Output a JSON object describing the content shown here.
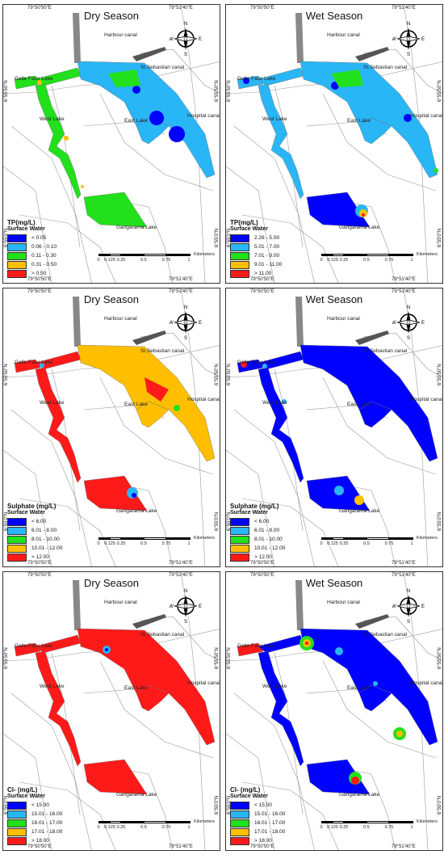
{
  "panels": [
    {
      "season": "Dry Season",
      "param": "TP(mg/L)",
      "subtitle": "Surface Water",
      "classes": [
        {
          "label": "< 0.05",
          "color": "#0000ff"
        },
        {
          "label": "0.06 - 0.10",
          "color": "#29b6f6"
        },
        {
          "label": "0.11 - 0.30",
          "color": "#22e01b"
        },
        {
          "label": "0.31 - 0.50",
          "color": "#ffbf00"
        },
        {
          "label": "> 0.50",
          "color": "#ff1a1a"
        }
      ]
    },
    {
      "season": "Wet Season",
      "param": "TP(mg/L)",
      "subtitle": "Surface Water",
      "classes": [
        {
          "label": "2.26 - 5.00",
          "color": "#0000ff"
        },
        {
          "label": "5.01 - 7.00",
          "color": "#29b6f6"
        },
        {
          "label": "7.01 - 9.00",
          "color": "#22e01b"
        },
        {
          "label": "9.01 - 11.00",
          "color": "#ffbf00"
        },
        {
          "label": "> 11.00",
          "color": "#ff1a1a"
        }
      ]
    },
    {
      "season": "Dry Season",
      "param": "Sulphate (mg/L)",
      "subtitle": "Surface Water",
      "classes": [
        {
          "label": "< 6.00",
          "color": "#0000ff"
        },
        {
          "label": "6.01 - 8.00",
          "color": "#29b6f6"
        },
        {
          "label": "8.01 - 10.00",
          "color": "#22e01b"
        },
        {
          "label": "10.01 - 12.00",
          "color": "#ffbf00"
        },
        {
          "label": "> 12.00",
          "color": "#ff1a1a"
        }
      ]
    },
    {
      "season": "Wet Season",
      "param": "Sulphate (mg/L)",
      "subtitle": "Surface Water",
      "classes": [
        {
          "label": "< 6.00",
          "color": "#0000ff"
        },
        {
          "label": "6.01 - 8.00",
          "color": "#29b6f6"
        },
        {
          "label": "8.01 - 10.00",
          "color": "#22e01b"
        },
        {
          "label": "10.01 - 12.00",
          "color": "#ffbf00"
        },
        {
          "label": "> 12.00",
          "color": "#ff1a1a"
        }
      ]
    },
    {
      "season": "Dry Season",
      "param": "Cl- (mg/L)",
      "subtitle": "Surface Water",
      "classes": [
        {
          "label": "< 15.00",
          "color": "#0000ff"
        },
        {
          "label": "15.01 - 16.00",
          "color": "#29b6f6"
        },
        {
          "label": "16.01 - 17.00",
          "color": "#22e01b"
        },
        {
          "label": "17.01 - 18.00",
          "color": "#ffbf00"
        },
        {
          "label": "> 18.00",
          "color": "#ff1a1a"
        }
      ]
    },
    {
      "season": "Wet Season",
      "param": "Cl- (mg/L)",
      "subtitle": "Surface Water",
      "classes": [
        {
          "label": "< 15.00",
          "color": "#0000ff"
        },
        {
          "label": "15.01 - 16.00",
          "color": "#29b6f6"
        },
        {
          "label": "16.01 - 17.00",
          "color": "#22e01b"
        },
        {
          "label": "17.01 - 18.00",
          "color": "#ffbf00"
        },
        {
          "label": "> 18.00",
          "color": "#ff1a1a"
        }
      ]
    }
  ],
  "places": {
    "harbour": "Harbour canal",
    "st_sebastian": "St.Sebastian canal",
    "galle_face": "Galle Face Lake",
    "west_lake": "West Lake",
    "east_lake": "East Lake",
    "hospital": "Hospital canal",
    "gangarama": "Gangarama Lake"
  },
  "coords": {
    "lon_left": "79°50'50\"E",
    "lon_right": "79°51'40\"E",
    "lat_top": "6°55'50\"N",
    "lat_bottom": "6°55'0\"N"
  },
  "compass": {
    "n": "N",
    "s": "S",
    "e": "E",
    "w": "W"
  },
  "scale": {
    "ticks": [
      "0",
      "0.125",
      "0.25",
      "0.5",
      "0.75",
      "1"
    ],
    "unit": "Kilometers"
  }
}
